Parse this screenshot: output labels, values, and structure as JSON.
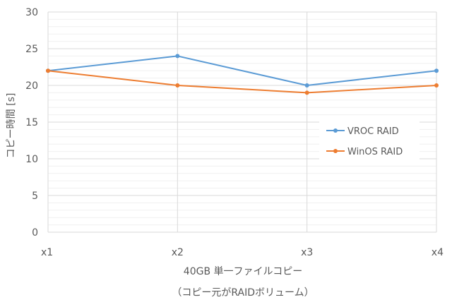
{
  "chart_data": {
    "type": "line",
    "categories": [
      "x1",
      "x2",
      "x3",
      "x4"
    ],
    "series": [
      {
        "name": "VROC RAID",
        "values": [
          22,
          24,
          20,
          22
        ],
        "color": "#5B9BD5"
      },
      {
        "name": "WinOS RAID",
        "values": [
          22,
          20,
          19,
          20
        ],
        "color": "#ED7D31"
      }
    ],
    "ylabel": "コピー時間 [s]",
    "xlabel_lines": [
      "40GB 単一ファイルコピー",
      "（コピー元がRAIDボリューム）"
    ],
    "ylim": [
      0,
      30
    ],
    "yticks": [
      0,
      5,
      10,
      15,
      20,
      25,
      30
    ],
    "grid": true,
    "grid_color": "#D9D9D9",
    "legend_position": "right"
  }
}
